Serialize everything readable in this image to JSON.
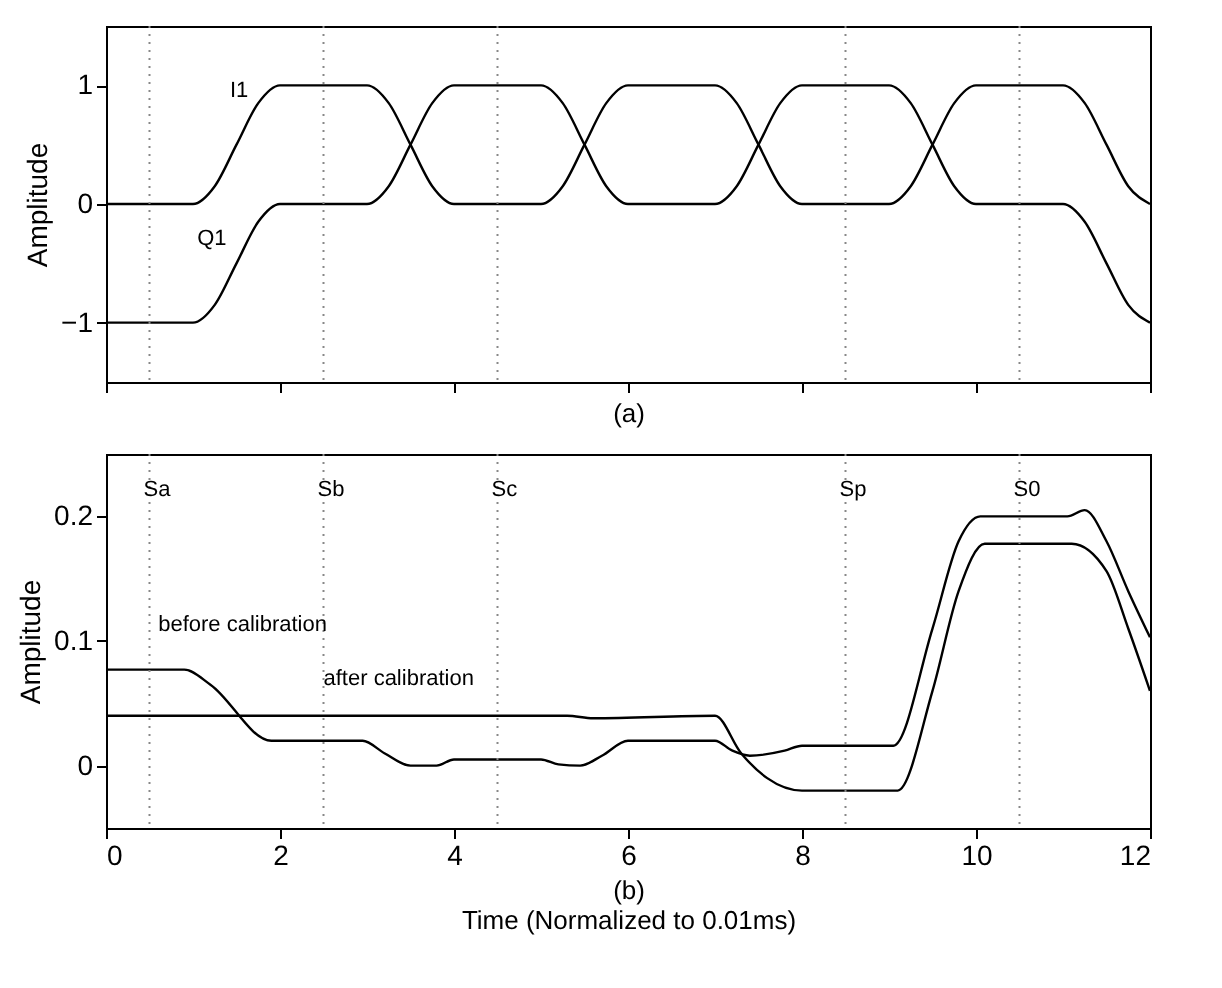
{
  "chart_data": [
    {
      "type": "line",
      "ylabel": "Amplitude",
      "xlim": [
        0,
        12
      ],
      "xticks": [
        0,
        2,
        4,
        6,
        8,
        10,
        12
      ],
      "ylim": [
        -1.5,
        1.5
      ],
      "yticks": [
        -1,
        0,
        1
      ],
      "tick_labels": "y",
      "grid": false,
      "marker": "none",
      "line_style": "solid",
      "x": [
        0,
        0.25,
        0.5,
        0.75,
        1,
        1.25,
        1.5,
        1.75,
        2,
        2.25,
        2.5,
        2.75,
        3,
        3.25,
        3.5,
        3.75,
        4,
        4.25,
        4.5,
        4.75,
        5,
        5.25,
        5.5,
        5.75,
        6,
        6.25,
        6.5,
        6.75,
        7,
        7.25,
        7.5,
        7.75,
        8,
        8.25,
        8.5,
        8.75,
        9,
        9.25,
        9.5,
        9.75,
        10,
        10.25,
        10.5,
        10.75,
        11,
        11.25,
        11.5,
        11.75,
        12
      ],
      "series": [
        {
          "name": "I1",
          "color": "#000000",
          "values": [
            0,
            0,
            0,
            0,
            0,
            0.15,
            0.5,
            0.85,
            1,
            1,
            1,
            1,
            1,
            0.85,
            0.5,
            0.15,
            0,
            0,
            0,
            0,
            0,
            0.15,
            0.5,
            0.85,
            1,
            1,
            1,
            1,
            1,
            0.85,
            0.5,
            0.15,
            0,
            0,
            0,
            0,
            0,
            0.15,
            0.5,
            0.85,
            1,
            1,
            1,
            1,
            1,
            0.85,
            0.5,
            0.15,
            0
          ]
        },
        {
          "name": "Q1",
          "color": "#000000",
          "values": [
            -1,
            -1,
            -1,
            -1,
            -1,
            -0.85,
            -0.5,
            -0.15,
            0,
            0,
            0,
            0,
            0,
            0.15,
            0.5,
            0.85,
            1,
            1,
            1,
            1,
            1,
            0.85,
            0.5,
            0.15,
            0,
            0,
            0,
            0,
            0,
            0.15,
            0.5,
            0.85,
            1,
            1,
            1,
            1,
            1,
            0.85,
            0.5,
            0.15,
            0,
            0,
            0,
            0,
            0,
            -0.15,
            -0.5,
            -0.85,
            -1
          ]
        }
      ],
      "ref_lines": [
        {
          "axis": "x",
          "value": 0.5,
          "color": "#888888",
          "line_style": "dotted"
        },
        {
          "axis": "x",
          "value": 2.5,
          "color": "#888888",
          "line_style": "dotted"
        },
        {
          "axis": "x",
          "value": 4.5,
          "color": "#888888",
          "line_style": "dotted"
        },
        {
          "axis": "x",
          "value": 8.5,
          "color": "#888888",
          "line_style": "dotted"
        },
        {
          "axis": "x",
          "value": 10.5,
          "color": "#888888",
          "line_style": "dotted"
        }
      ],
      "annotations": [
        "(a)"
      ]
    },
    {
      "type": "line",
      "xlabel": "Time (Normalized to 0.01ms)",
      "ylabel": "Amplitude",
      "xlim": [
        0,
        12
      ],
      "xticks": [
        0,
        2,
        4,
        6,
        8,
        10,
        12
      ],
      "ylim": [
        -0.05,
        0.25
      ],
      "yticks": [
        0,
        0.1,
        0.2
      ],
      "grid": false,
      "marker": "none",
      "line_style": "solid",
      "series": [
        {
          "color": "#000000",
          "x": [
            0,
            0.9,
            1.2,
            1.9,
            2.95,
            3.2,
            3.5,
            3.8,
            4.0,
            5.0,
            5.2,
            5.45,
            5.7,
            6.0,
            7.0,
            7.2,
            7.4,
            7.8,
            8.0,
            9.05,
            9.5,
            9.8,
            10.05,
            11.05,
            11.25,
            11.5,
            11.75,
            12
          ],
          "values": [
            0.077,
            0.077,
            0.065,
            0.02,
            0.02,
            0.01,
            0.0,
            0.0,
            0.005,
            0.005,
            0.001,
            0,
            0.008,
            0.02,
            0.02,
            0.012,
            0.008,
            0.012,
            0.016,
            0.016,
            0.11,
            0.18,
            0.2,
            0.2,
            0.205,
            0.18,
            0.14,
            0.103
          ]
        },
        {
          "color": "#000000",
          "x": [
            0,
            5.3,
            5.6,
            7.0,
            7.3,
            7.6,
            8.0,
            9.1,
            9.5,
            9.8,
            10.1,
            11.1,
            11.5,
            11.75,
            12
          ],
          "values": [
            0.04,
            0.04,
            0.038,
            0.04,
            0.01,
            -0.01,
            -0.02,
            -0.02,
            0.06,
            0.14,
            0.178,
            0.178,
            0.156,
            0.11,
            0.06
          ]
        }
      ],
      "ref_lines": [
        {
          "axis": "x",
          "value": 0.5,
          "label": "Sa",
          "color": "#888888",
          "line_style": "dotted"
        },
        {
          "axis": "x",
          "value": 2.5,
          "label": "Sb",
          "color": "#888888",
          "line_style": "dotted"
        },
        {
          "axis": "x",
          "value": 4.5,
          "label": "Sc",
          "color": "#888888",
          "line_style": "dotted"
        },
        {
          "axis": "x",
          "value": 8.5,
          "label": "Sp",
          "color": "#888888",
          "line_style": "dotted"
        },
        {
          "axis": "x",
          "value": 10.5,
          "label": "S0",
          "color": "#888888",
          "line_style": "dotted"
        }
      ],
      "annotations": [
        "(b)",
        {
          "text": "before calibration",
          "x": 0.6,
          "y": 0.1
        },
        {
          "text": "after calibration",
          "x": 2.5,
          "y": 0.057
        }
      ]
    }
  ]
}
